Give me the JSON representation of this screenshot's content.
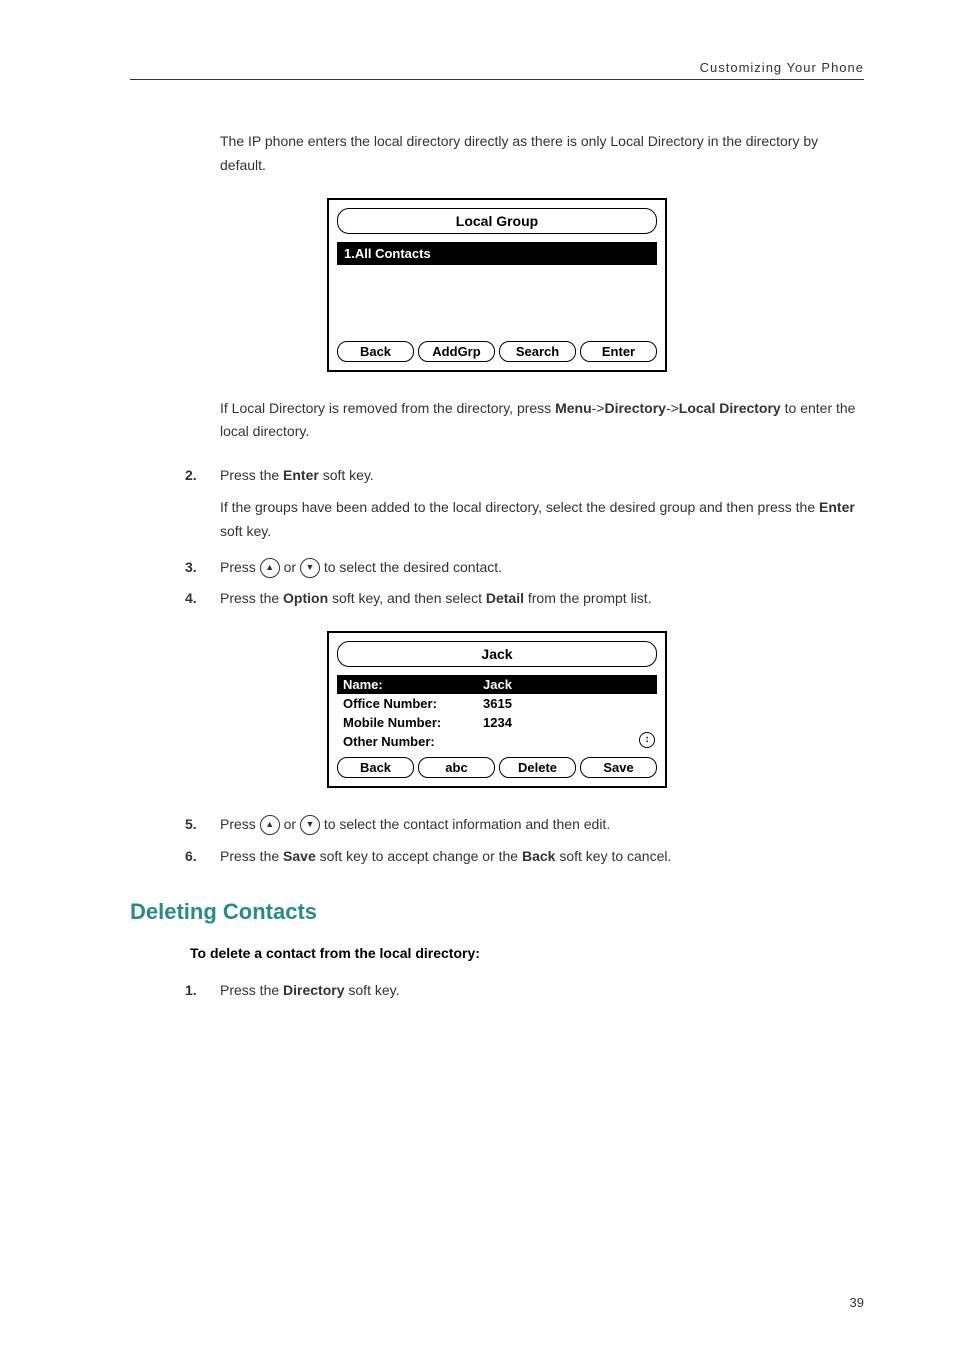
{
  "header": "Customizing Your Phone",
  "intro": "The IP phone enters the local directory directly as there is only Local Directory in the directory by default.",
  "screen1": {
    "title": "Local Group",
    "item": "1.All Contacts",
    "keys": [
      "Back",
      "AddGrp",
      "Search",
      "Enter"
    ]
  },
  "para_local_removed": {
    "p1": "If Local Directory is removed from the directory, press ",
    "b1": "Menu",
    "arrow1": "->",
    "b2": "Directory",
    "arrow2": "->",
    "b3": "Local Directory",
    "p2": " to enter the local directory."
  },
  "steps": {
    "s2": {
      "num": "2.",
      "t1": "Press the ",
      "b": "Enter",
      "t2": " soft key."
    },
    "s2_sub": {
      "t1": "If the groups have been added to the local directory, select the desired group and then press the ",
      "b": "Enter",
      "t2": " soft key."
    },
    "s3": {
      "num": "3.",
      "t1": "Press ",
      "t2": " or ",
      "t3": " to select the desired contact."
    },
    "s4": {
      "num": "4.",
      "t1": "Press the ",
      "b1": "Option",
      "t2": " soft key, and then select ",
      "b2": "Detail",
      "t3": " from the prompt list."
    },
    "s5": {
      "num": "5.",
      "t1": "Press ",
      "t2": " or ",
      "t3": " to select the contact information and then edit."
    },
    "s6": {
      "num": "6.",
      "t1": "Press the ",
      "b1": "Save",
      "t2": " soft key to accept change or the ",
      "b2": "Back",
      "t3": " soft key to cancel."
    }
  },
  "screen2": {
    "title": "Jack",
    "rows": [
      {
        "label": "Name:",
        "value": "Jack",
        "hl": true
      },
      {
        "label": "Office Number:",
        "value": "3615",
        "hl": false
      },
      {
        "label": "Mobile Number:",
        "value": "1234",
        "hl": false
      },
      {
        "label": "Other Number:",
        "value": "",
        "hl": false
      }
    ],
    "keys": [
      "Back",
      "abc",
      "Delete",
      "Save"
    ]
  },
  "section": "Deleting Contacts",
  "subheading": "To delete a contact from the local directory:",
  "step_del1": {
    "num": "1.",
    "t1": "Press the ",
    "b": "Directory",
    "t2": " soft key."
  },
  "pagenum": "39",
  "arrows": {
    "up": "▲",
    "down": "▼"
  },
  "scroll_icon": "↕"
}
